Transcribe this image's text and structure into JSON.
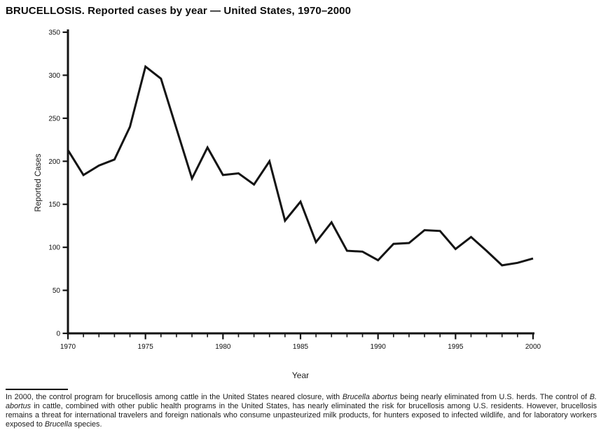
{
  "page": {
    "title": "BRUCELLOSIS. Reported cases by year — United States, 1970–2000"
  },
  "chart_data": {
    "type": "line",
    "title": "BRUCELLOSIS. Reported cases by year — United States, 1970–2000",
    "xlabel": "Year",
    "ylabel": "Reported Cases",
    "x": [
      1970,
      1971,
      1972,
      1973,
      1974,
      1975,
      1976,
      1977,
      1978,
      1979,
      1980,
      1981,
      1982,
      1983,
      1984,
      1985,
      1986,
      1987,
      1988,
      1989,
      1990,
      1991,
      1992,
      1993,
      1994,
      1995,
      1996,
      1997,
      1998,
      1999,
      2000
    ],
    "values": [
      213,
      184,
      195,
      202,
      240,
      310,
      296,
      238,
      180,
      216,
      184,
      186,
      173,
      200,
      131,
      153,
      106,
      129,
      96,
      95,
      85,
      104,
      105,
      120,
      119,
      98,
      112,
      96,
      79,
      82,
      87
    ],
    "xlim": [
      1970,
      2000
    ],
    "ylim": [
      0,
      350
    ],
    "y_ticks": [
      0,
      50,
      100,
      150,
      200,
      250,
      300,
      350
    ],
    "x_major_ticks": [
      1970,
      1975,
      1980,
      1985,
      1990,
      1995,
      2000
    ],
    "x_minor_tick_interval": 1,
    "grid": false,
    "legend": "none",
    "line_color": "#141414",
    "line_width": 3,
    "axis_color": "#141414"
  },
  "footnote": {
    "segments": [
      {
        "text": "In 2000, the control program for brucellosis among cattle in the United States neared closure, with ",
        "italic": false
      },
      {
        "text": "Brucella abortus",
        "italic": true
      },
      {
        "text": " being nearly eliminated from U.S. herds. The control of ",
        "italic": false
      },
      {
        "text": "B. abortus",
        "italic": true
      },
      {
        "text": " in cattle, combined with other public health programs in the United States, has nearly eliminated the risk for brucellosis among U.S. residents. However, brucellosis remains a threat for international travelers and foreign nationals who consume unpasteurized milk products, for hunters exposed to infected wildlife, and for laboratory workers exposed to ",
        "italic": false
      },
      {
        "text": "Brucella",
        "italic": true
      },
      {
        "text": " species.",
        "italic": false
      }
    ]
  }
}
